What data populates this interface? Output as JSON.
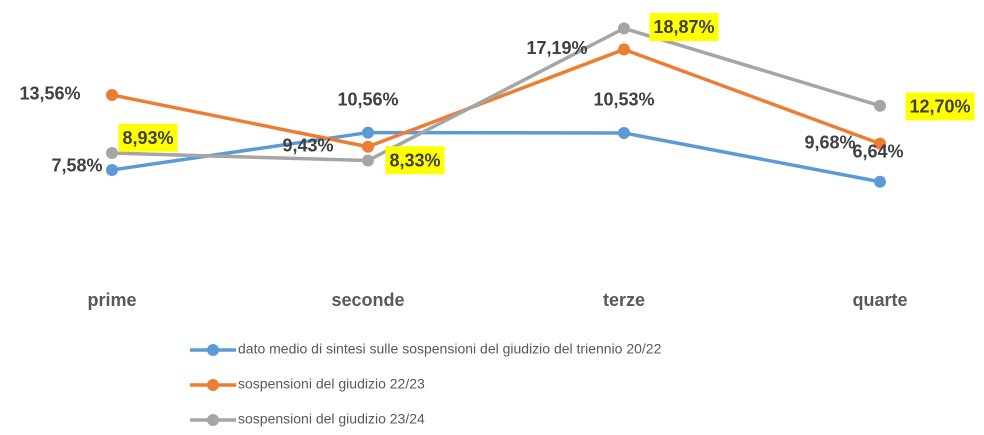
{
  "chart_data": {
    "type": "line",
    "categories": [
      "prime",
      "seconde",
      "terze",
      "quarte"
    ],
    "series": [
      {
        "name": "dato medio di sintesi sulle sospensioni del giudizio del triennio 20/22",
        "color": "#5b9bd5",
        "values": [
          7.58,
          10.56,
          10.53,
          6.64
        ],
        "value_labels": [
          "7,58%",
          "10,56%",
          "10,53%",
          "6,64%"
        ]
      },
      {
        "name": "sospensioni del giudizio 22/23",
        "color": "#ed7d31",
        "values": [
          13.56,
          9.43,
          17.19,
          9.68
        ],
        "value_labels": [
          "13,56%",
          "9,43%",
          "17,19%",
          "9,68%"
        ]
      },
      {
        "name": "sospensioni del giudizio 23/24",
        "color": "#a5a5a5",
        "label_highlight": "#ffff00",
        "values": [
          8.93,
          8.33,
          18.87,
          12.7
        ],
        "value_labels": [
          "8,93%",
          "8,33%",
          "18,87%",
          "12,70%"
        ]
      }
    ]
  }
}
